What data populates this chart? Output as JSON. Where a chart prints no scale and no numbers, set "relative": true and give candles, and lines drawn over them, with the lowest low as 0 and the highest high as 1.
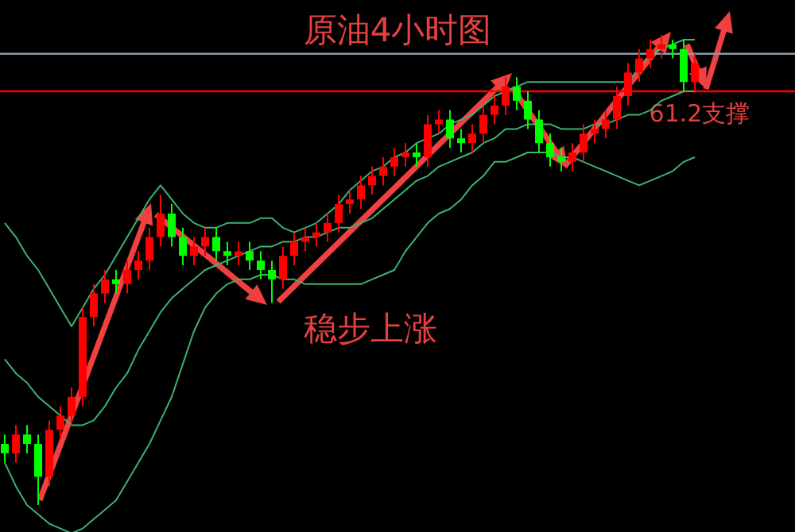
{
  "chart_data": {
    "type": "candlestick",
    "title": "原油4小时图",
    "relative": true,
    "categories": [
      null,
      null,
      null,
      null,
      null,
      null,
      null,
      null,
      null,
      null,
      null,
      null,
      null,
      null,
      null,
      null,
      null,
      null,
      null,
      null,
      null,
      null,
      null,
      null,
      null,
      null,
      null,
      null,
      null,
      null,
      null,
      null,
      null,
      null,
      null,
      null,
      null,
      null,
      null,
      null,
      null,
      null,
      null,
      null,
      null,
      null,
      null,
      null,
      null,
      null,
      null,
      null,
      null,
      null,
      null,
      null,
      null,
      null,
      null,
      null,
      null,
      null,
      null
    ],
    "ohlc": [
      [
        0.13,
        0.15,
        0.09,
        0.11
      ],
      [
        0.11,
        0.17,
        0.09,
        0.15
      ],
      [
        0.15,
        0.17,
        0.11,
        0.13
      ],
      [
        0.13,
        0.15,
        0.0,
        0.06
      ],
      [
        0.06,
        0.18,
        0.04,
        0.16
      ],
      [
        0.16,
        0.21,
        0.14,
        0.19
      ],
      [
        0.19,
        0.25,
        0.17,
        0.23
      ],
      [
        0.23,
        0.42,
        0.21,
        0.4
      ],
      [
        0.4,
        0.47,
        0.38,
        0.45
      ],
      [
        0.45,
        0.5,
        0.43,
        0.48
      ],
      [
        0.48,
        0.5,
        0.45,
        0.47
      ],
      [
        0.47,
        0.52,
        0.45,
        0.5
      ],
      [
        0.5,
        0.54,
        0.48,
        0.52
      ],
      [
        0.52,
        0.59,
        0.5,
        0.57
      ],
      [
        0.57,
        0.66,
        0.55,
        0.62
      ],
      [
        0.62,
        0.64,
        0.55,
        0.57
      ],
      [
        0.57,
        0.59,
        0.51,
        0.53
      ],
      [
        0.53,
        0.57,
        0.51,
        0.55
      ],
      [
        0.55,
        0.59,
        0.53,
        0.57
      ],
      [
        0.57,
        0.59,
        0.52,
        0.54
      ],
      [
        0.54,
        0.56,
        0.51,
        0.53
      ],
      [
        0.53,
        0.56,
        0.51,
        0.54
      ],
      [
        0.54,
        0.56,
        0.5,
        0.52
      ],
      [
        0.52,
        0.54,
        0.48,
        0.5
      ],
      [
        0.5,
        0.52,
        0.43,
        0.48
      ],
      [
        0.48,
        0.55,
        0.46,
        0.53
      ],
      [
        0.53,
        0.58,
        0.51,
        0.56
      ],
      [
        0.56,
        0.59,
        0.54,
        0.57
      ],
      [
        0.57,
        0.6,
        0.55,
        0.58
      ],
      [
        0.58,
        0.62,
        0.56,
        0.6
      ],
      [
        0.6,
        0.66,
        0.58,
        0.64
      ],
      [
        0.64,
        0.67,
        0.62,
        0.65
      ],
      [
        0.65,
        0.7,
        0.63,
        0.68
      ],
      [
        0.68,
        0.72,
        0.66,
        0.7
      ],
      [
        0.7,
        0.74,
        0.68,
        0.72
      ],
      [
        0.72,
        0.76,
        0.7,
        0.74
      ],
      [
        0.74,
        0.77,
        0.72,
        0.75
      ],
      [
        0.75,
        0.77,
        0.72,
        0.74
      ],
      [
        0.74,
        0.83,
        0.72,
        0.81
      ],
      [
        0.81,
        0.84,
        0.79,
        0.82
      ],
      [
        0.82,
        0.84,
        0.76,
        0.78
      ],
      [
        0.78,
        0.8,
        0.75,
        0.77
      ],
      [
        0.77,
        0.81,
        0.75,
        0.79
      ],
      [
        0.79,
        0.85,
        0.77,
        0.83
      ],
      [
        0.83,
        0.87,
        0.81,
        0.85
      ],
      [
        0.85,
        0.91,
        0.83,
        0.89
      ],
      [
        0.89,
        0.91,
        0.84,
        0.86
      ],
      [
        0.86,
        0.88,
        0.8,
        0.82
      ],
      [
        0.82,
        0.84,
        0.75,
        0.77
      ],
      [
        0.77,
        0.79,
        0.72,
        0.74
      ],
      [
        0.74,
        0.76,
        0.71,
        0.73
      ],
      [
        0.73,
        0.77,
        0.71,
        0.75
      ],
      [
        0.75,
        0.81,
        0.73,
        0.79
      ],
      [
        0.79,
        0.82,
        0.77,
        0.8
      ],
      [
        0.8,
        0.84,
        0.78,
        0.82
      ],
      [
        0.82,
        0.89,
        0.8,
        0.87
      ],
      [
        0.87,
        0.94,
        0.85,
        0.92
      ],
      [
        0.92,
        0.97,
        0.9,
        0.95
      ],
      [
        0.95,
        0.99,
        0.93,
        0.97
      ],
      [
        0.97,
        1.0,
        0.95,
        0.98
      ],
      [
        0.98,
        0.99,
        0.95,
        0.97
      ],
      [
        0.97,
        0.99,
        0.88,
        0.9
      ],
      [
        0.9,
        0.96,
        0.88,
        0.94
      ]
    ],
    "colors": [
      "#00ff00",
      "#ff0000",
      "#00ff00",
      "#00ff00",
      "#ff0000",
      "#ff0000",
      "#ff0000",
      "#ff0000",
      "#ff0000",
      "#ff0000",
      "#00ff00",
      "#ff0000",
      "#ff0000",
      "#ff0000",
      "#ff0000",
      "#00ff00",
      "#00ff00",
      "#ff0000",
      "#ff0000",
      "#00ff00",
      "#00ff00",
      "#ff0000",
      "#00ff00",
      "#00ff00",
      "#00ff00",
      "#ff0000",
      "#ff0000",
      "#ff0000",
      "#ff0000",
      "#ff0000",
      "#ff0000",
      "#ff0000",
      "#ff0000",
      "#ff0000",
      "#ff0000",
      "#ff0000",
      "#ff0000",
      "#00ff00",
      "#ff0000",
      "#ff0000",
      "#00ff00",
      "#00ff00",
      "#ff0000",
      "#ff0000",
      "#ff0000",
      "#ff0000",
      "#00ff00",
      "#00ff00",
      "#00ff00",
      "#00ff00",
      "#00ff00",
      "#ff0000",
      "#ff0000",
      "#ff0000",
      "#ff0000",
      "#ff0000",
      "#ff0000",
      "#ff0000",
      "#ff0000",
      "#ff0000",
      "#00ff00",
      "#00ff00",
      "#ff0000"
    ],
    "series": [
      {
        "type": "line",
        "color": "#3cb371",
        "values": [
          0.6,
          0.57,
          0.53,
          0.5,
          0.46,
          0.42,
          0.38,
          0.42,
          0.46,
          0.49,
          0.53,
          0.57,
          0.61,
          0.65,
          0.68,
          0.65,
          0.62,
          0.6,
          0.59,
          0.59,
          0.6,
          0.6,
          0.6,
          0.61,
          0.61,
          0.59,
          0.58,
          0.59,
          0.6,
          0.62,
          0.64,
          0.67,
          0.69,
          0.71,
          0.72,
          0.74,
          0.75,
          0.77,
          0.78,
          0.79,
          0.81,
          0.82,
          0.83,
          0.85,
          0.87,
          0.88,
          0.89,
          0.9,
          0.9,
          0.9,
          0.9,
          0.9,
          0.9,
          0.9,
          0.9,
          0.9,
          0.9,
          0.93,
          0.96,
          0.97,
          0.98,
          0.99,
          0.99
        ]
      },
      {
        "type": "line",
        "color": "#3cb371",
        "values": [
          0.31,
          0.28,
          0.26,
          0.23,
          0.21,
          0.19,
          0.17,
          0.17,
          0.18,
          0.21,
          0.25,
          0.28,
          0.33,
          0.37,
          0.41,
          0.44,
          0.46,
          0.48,
          0.5,
          0.51,
          0.52,
          0.53,
          0.54,
          0.55,
          0.55,
          0.56,
          0.56,
          0.57,
          0.57,
          0.58,
          0.59,
          0.59,
          0.6,
          0.61,
          0.63,
          0.65,
          0.67,
          0.69,
          0.7,
          0.72,
          0.73,
          0.74,
          0.75,
          0.77,
          0.78,
          0.8,
          0.8,
          0.81,
          0.81,
          0.81,
          0.8,
          0.8,
          0.8,
          0.81,
          0.81,
          0.82,
          0.83,
          0.83,
          0.84,
          0.86,
          0.87,
          0.88,
          0.88
        ]
      },
      {
        "type": "line",
        "color": "#3cb371",
        "values": [
          0.09,
          0.04,
          0.0,
          -0.02,
          -0.04,
          -0.05,
          -0.06,
          -0.05,
          -0.03,
          -0.01,
          0.01,
          0.05,
          0.09,
          0.13,
          0.18,
          0.23,
          0.3,
          0.37,
          0.42,
          0.45,
          0.47,
          0.48,
          0.48,
          0.49,
          0.49,
          0.48,
          0.48,
          0.47,
          0.47,
          0.47,
          0.47,
          0.47,
          0.47,
          0.48,
          0.49,
          0.5,
          0.54,
          0.57,
          0.6,
          0.62,
          0.63,
          0.65,
          0.68,
          0.7,
          0.73,
          0.73,
          0.74,
          0.75,
          0.75,
          0.75,
          0.74,
          0.74,
          0.73,
          0.72,
          0.71,
          0.7,
          0.69,
          0.68,
          0.69,
          0.7,
          0.71,
          0.73,
          0.74
        ]
      }
    ],
    "ref_lines": [
      {
        "axis": "y",
        "value": 0.96,
        "color": "#8a9aaa"
      },
      {
        "axis": "y",
        "value": 0.88,
        "color": "#ff0000",
        "label": "61.2支撑"
      }
    ],
    "annotations": [
      "稳步上涨"
    ]
  }
}
